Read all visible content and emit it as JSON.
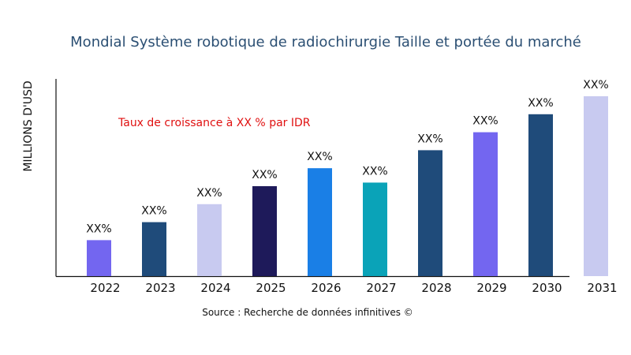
{
  "chart_data": {
    "type": "bar",
    "title": "Mondial Système robotique de radiochirurgie Taille et portée du marché",
    "ylabel": "MILLIONS D'USD",
    "xlabel": "",
    "annotation": "Taux de croissance à XX % par IDR",
    "source": "Source : Recherche de données infinitives ©",
    "categories": [
      "2022",
      "2023",
      "2024",
      "2025",
      "2026",
      "2027",
      "2028",
      "2029",
      "2030",
      "2031"
    ],
    "values": [
      20,
      30,
      40,
      50,
      60,
      52,
      70,
      80,
      90,
      100
    ],
    "data_labels": [
      "XX%",
      "XX%",
      "XX%",
      "XX%",
      "XX%",
      "XX%",
      "XX%",
      "XX%",
      "XX%",
      "XX%"
    ],
    "colors": [
      "#7366f0",
      "#1f4b7a",
      "#c8caf0",
      "#1e1a5a",
      "#1a7fe6",
      "#0aa3b8",
      "#1f4b7a",
      "#7366f0",
      "#1f4b7a",
      "#c8caf0"
    ],
    "title_color": "#2b4f73",
    "annotation_color": "#e01010",
    "ylim": [
      0,
      110
    ],
    "grid": false,
    "legend": "none"
  }
}
